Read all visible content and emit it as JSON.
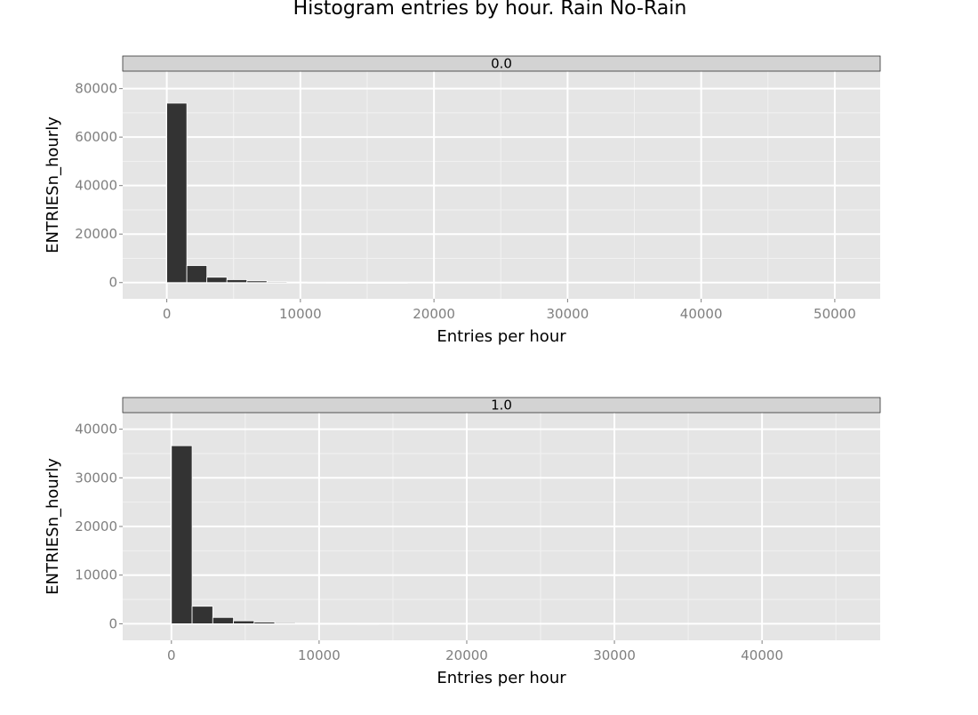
{
  "title": "Histogram entries by hour. Rain No-Rain",
  "colors": {
    "panel_background": "#e5e5e5",
    "gridline": "#ffffff",
    "bar_fill": "#333333",
    "bar_edge": "#ffffff",
    "strip_fill": "#d3d3d3",
    "tick_label": "#7f7f7f",
    "text": "#000000"
  },
  "chart_data": [
    {
      "type": "bar",
      "facet_label": "0.0",
      "title": "Histogram entries by hour. Rain No-Rain",
      "xlabel": "Entries per hour",
      "ylabel": "ENTRIESn_hourly",
      "xlim": [
        -3300,
        53400
      ],
      "ylim": [
        -6700,
        87200
      ],
      "xticks": [
        0,
        10000,
        20000,
        30000,
        40000,
        50000
      ],
      "yticks": [
        0,
        20000,
        40000,
        60000,
        80000
      ],
      "grid": true,
      "bin_width": 1500,
      "bins_start": [
        0,
        1500,
        3000,
        4500,
        6000,
        7500,
        9000,
        10500,
        12000,
        13500,
        15000,
        16500
      ],
      "values": [
        74000,
        7000,
        2200,
        1200,
        700,
        350,
        180,
        100,
        60,
        40,
        25,
        15
      ]
    },
    {
      "type": "bar",
      "facet_label": "1.0",
      "title": "Histogram entries by hour. Rain No-Rain",
      "xlabel": "Entries per hour",
      "ylabel": "ENTRIESn_hourly",
      "xlim": [
        -3300,
        48000
      ],
      "ylim": [
        -3400,
        43400
      ],
      "xticks": [
        0,
        10000,
        20000,
        30000,
        40000
      ],
      "yticks": [
        0,
        10000,
        20000,
        30000,
        40000
      ],
      "grid": true,
      "bin_width": 1400,
      "bins_start": [
        0,
        1400,
        2800,
        4200,
        5600,
        7000,
        8400,
        9800,
        11200,
        12600
      ],
      "values": [
        36600,
        3600,
        1300,
        600,
        350,
        180,
        90,
        50,
        30,
        20
      ]
    }
  ]
}
